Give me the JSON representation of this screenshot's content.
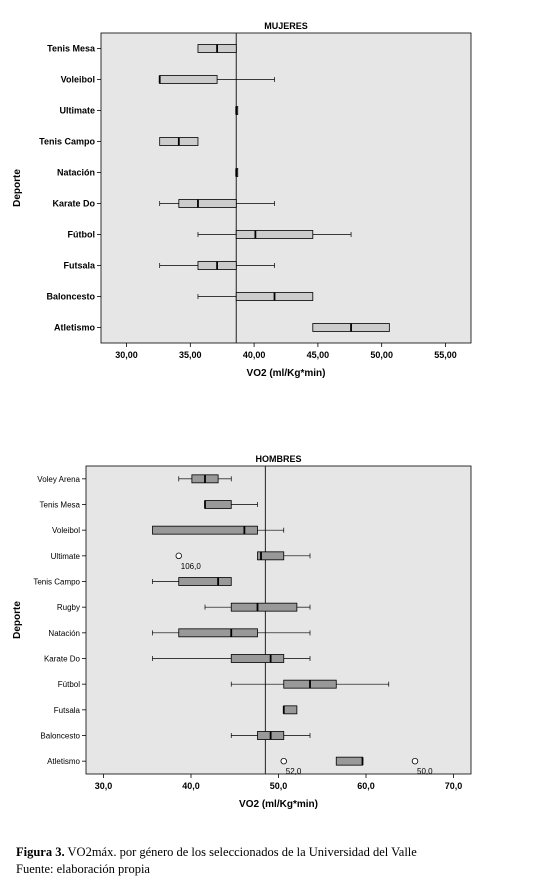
{
  "chart_data": [
    {
      "type": "boxplot",
      "orientation": "horizontal",
      "title": "MUJERES",
      "xlabel": "VO2 (ml/Kg*min)",
      "ylabel": "Deporte",
      "xlim": [
        28,
        57
      ],
      "xticks": [
        "30,00",
        "35,00",
        "40,00",
        "45,00",
        "50,00",
        "55,00"
      ],
      "xtick_values": [
        30,
        35,
        40,
        45,
        50,
        55
      ],
      "reference_line": 38.6,
      "grid": false,
      "box_color": "#cccccc",
      "background": "#e6e6e6",
      "categories": [
        "Tenis Mesa",
        "Voleibol",
        "Ultimate",
        "Tenis Campo",
        "Natación",
        "Karate Do",
        "Fútbol",
        "Futsala",
        "Baloncesto",
        "Atletismo"
      ],
      "boxes": [
        {
          "min": 35.6,
          "q1": 35.6,
          "median": 37.1,
          "q3": 38.6,
          "max": 38.6
        },
        {
          "min": 32.6,
          "q1": 32.6,
          "median": 32.6,
          "q3": 37.1,
          "max": 41.6
        },
        {
          "min": 38.6,
          "q1": 38.6,
          "median": 38.6,
          "q3": 38.6,
          "max": 38.6
        },
        {
          "min": 32.6,
          "q1": 32.6,
          "median": 34.1,
          "q3": 35.6,
          "max": 35.6
        },
        {
          "min": 38.6,
          "q1": 38.6,
          "median": 38.6,
          "q3": 38.6,
          "max": 38.6
        },
        {
          "min": 32.6,
          "q1": 34.1,
          "median": 35.6,
          "q3": 38.6,
          "max": 41.6
        },
        {
          "min": 35.6,
          "q1": 38.6,
          "median": 40.1,
          "q3": 44.6,
          "max": 47.6
        },
        {
          "min": 32.6,
          "q1": 35.6,
          "median": 37.1,
          "q3": 38.6,
          "max": 41.6
        },
        {
          "min": 35.6,
          "q1": 38.6,
          "median": 41.6,
          "q3": 44.6,
          "max": 44.6
        },
        {
          "min": 44.6,
          "q1": 44.6,
          "median": 47.6,
          "q3": 50.6,
          "max": 50.6
        }
      ],
      "outliers": []
    },
    {
      "type": "boxplot",
      "orientation": "horizontal",
      "title": "HOMBRES",
      "xlabel": "VO2 (ml/Kg*min)",
      "ylabel": "Deporte",
      "xlim": [
        28,
        72
      ],
      "xticks": [
        "30,0",
        "40,0",
        "50,0",
        "60,0",
        "70,0"
      ],
      "xtick_values": [
        30,
        40,
        50,
        60,
        70
      ],
      "reference_line": 48.5,
      "grid": false,
      "box_color": "#999999",
      "background": "#e6e6e6",
      "categories": [
        "Voley Arena",
        "Tenis Mesa",
        "Voleibol",
        "Ultimate",
        "Tenis Campo",
        "Rugby",
        "Natación",
        "Karate Do",
        "Fútbol",
        "Futsala",
        "Baloncesto",
        "Atletismo"
      ],
      "boxes": [
        {
          "min": 38.6,
          "q1": 40.1,
          "median": 41.6,
          "q3": 43.1,
          "max": 44.6
        },
        {
          "min": 41.6,
          "q1": 41.6,
          "median": 41.6,
          "q3": 44.6,
          "max": 47.6
        },
        {
          "min": 35.6,
          "q1": 35.6,
          "median": 46.1,
          "q3": 47.6,
          "max": 50.6
        },
        {
          "min": 47.6,
          "q1": 47.6,
          "median": 48.0,
          "q3": 50.6,
          "max": 53.6
        },
        {
          "min": 35.6,
          "q1": 38.6,
          "median": 43.1,
          "q3": 44.6,
          "max": 44.6
        },
        {
          "min": 41.6,
          "q1": 44.6,
          "median": 47.6,
          "q3": 52.1,
          "max": 53.6
        },
        {
          "min": 35.6,
          "q1": 38.6,
          "median": 44.6,
          "q3": 47.6,
          "max": 53.6
        },
        {
          "min": 35.6,
          "q1": 44.6,
          "median": 49.1,
          "q3": 50.6,
          "max": 53.6
        },
        {
          "min": 44.6,
          "q1": 50.6,
          "median": 53.6,
          "q3": 56.6,
          "max": 62.6
        },
        {
          "min": 50.6,
          "q1": 50.6,
          "median": 50.6,
          "q3": 52.1,
          "max": 52.1
        },
        {
          "min": 44.6,
          "q1": 47.6,
          "median": 49.1,
          "q3": 50.6,
          "max": 53.6
        },
        {
          "min": 56.6,
          "q1": 56.6,
          "median": 59.6,
          "q3": 59.6,
          "max": 59.6
        }
      ],
      "outliers": [
        {
          "category": "Ultimate",
          "value": 38.6,
          "label": "106,0"
        },
        {
          "category": "Atletismo",
          "value": 50.6,
          "label": "52,0"
        },
        {
          "category": "Atletismo",
          "value": 65.6,
          "label": "50,0"
        }
      ]
    }
  ],
  "caption": {
    "figure_label": "Figura 3.",
    "figure_text": "VO2máx. por género de los seleccionados de la Universidad del Valle",
    "source": "Fuente: elaboración propia"
  }
}
